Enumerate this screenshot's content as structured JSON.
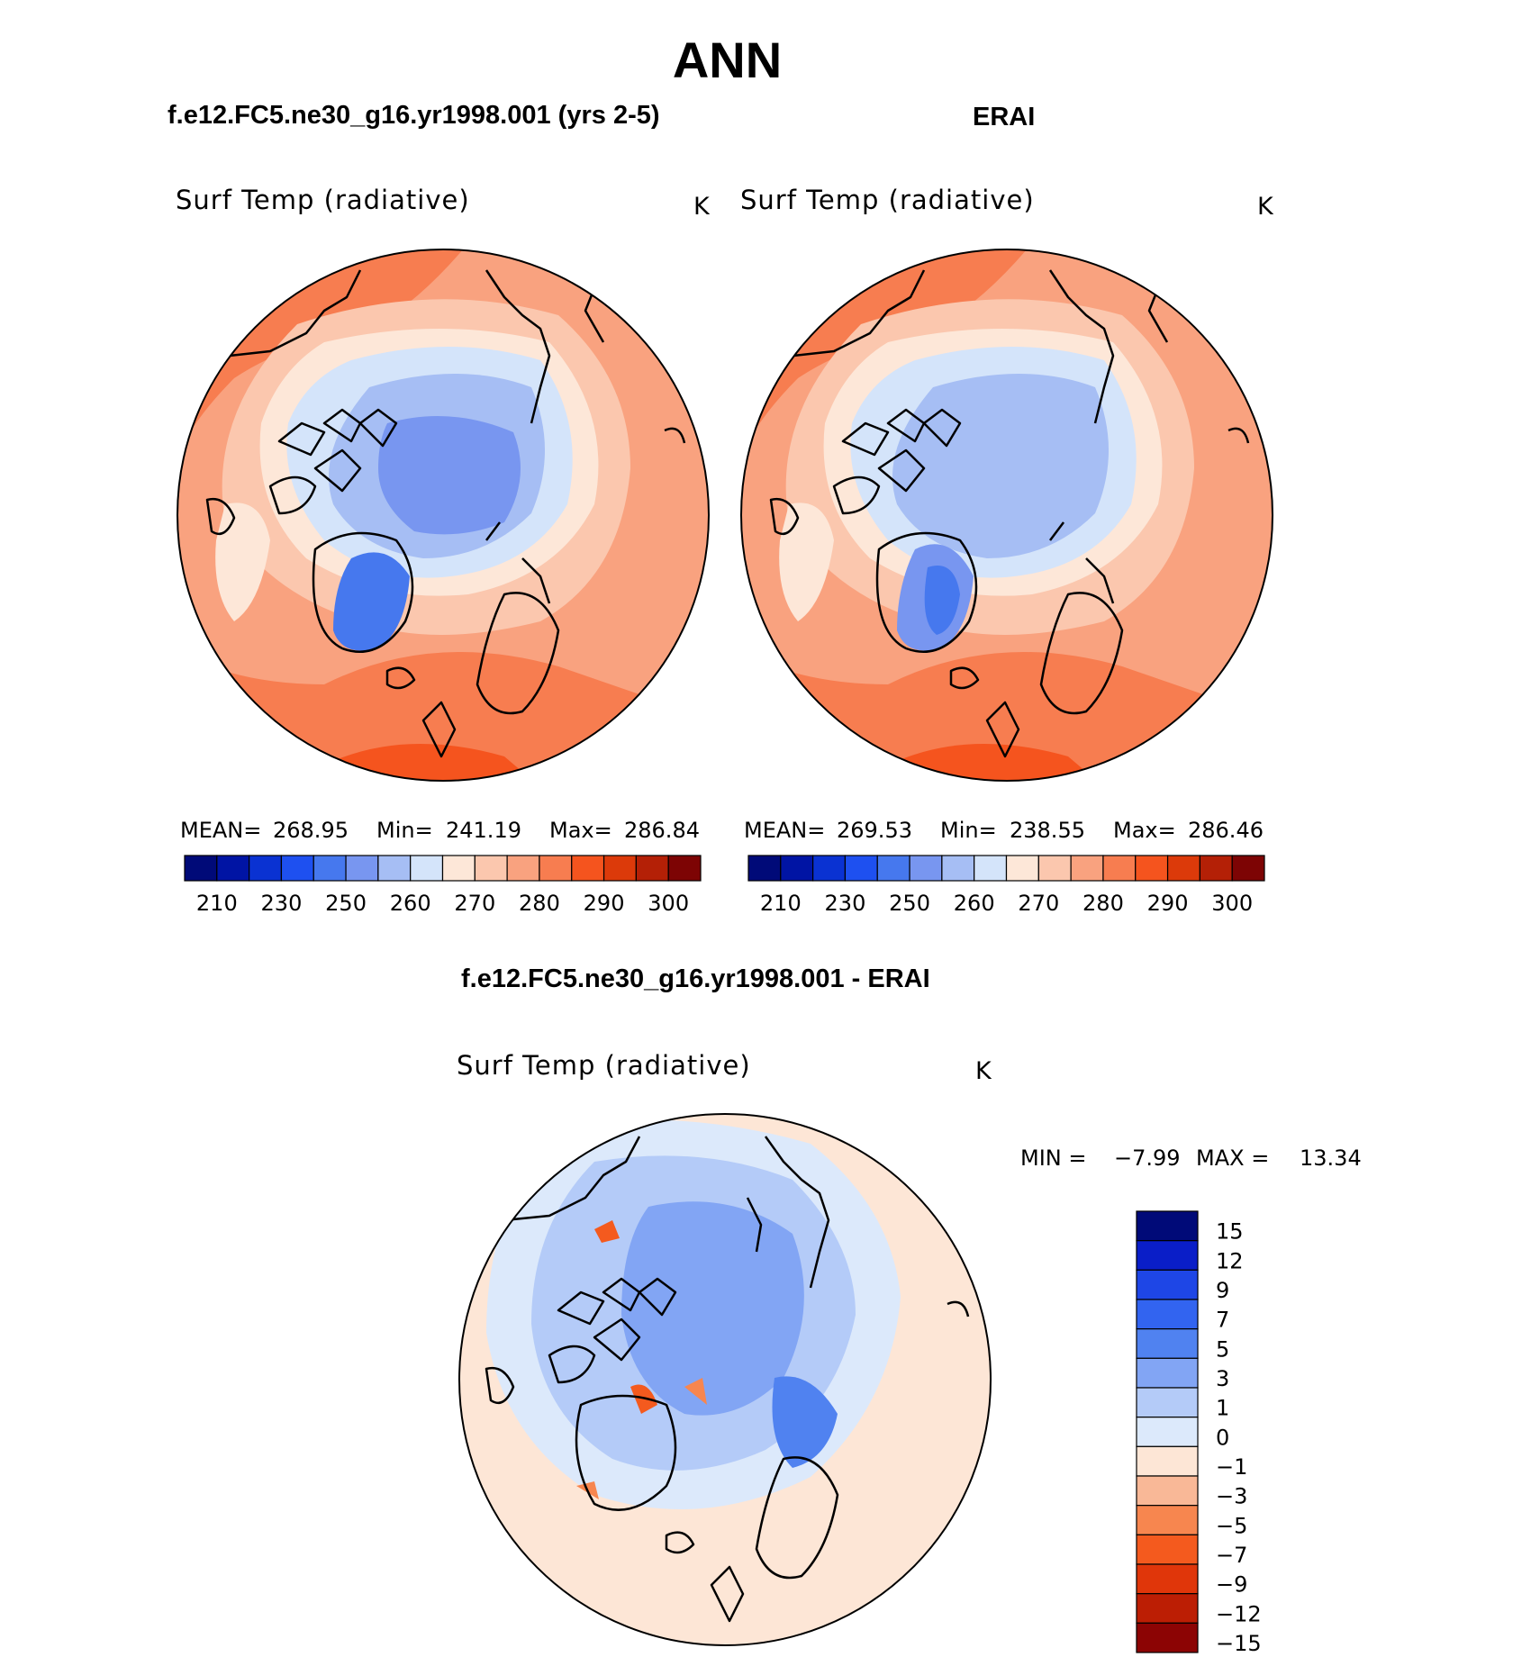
{
  "page_title": "ANN",
  "panels": [
    {
      "case": "f.e12.FC5.ne30_g16.yr1998.001 (yrs 2-5)",
      "variable": "Surf Temp (radiative)",
      "units": "K",
      "stats": {
        "mean_label": "MEAN=",
        "mean": "268.95",
        "min_label": "Min=",
        "min": "241.19",
        "max_label": "Max=",
        "max": "286.84"
      }
    },
    {
      "case": "ERAI",
      "variable": "Surf Temp (radiative)",
      "units": "K",
      "stats": {
        "mean_label": "MEAN=",
        "mean": "269.53",
        "min_label": "Min=",
        "min": "238.55",
        "max_label": "Max=",
        "max": "286.46"
      }
    }
  ],
  "abs_colorbar": {
    "colors": [
      "#000a78",
      "#0014a4",
      "#0a32d2",
      "#1e50f0",
      "#4678ee",
      "#7896f0",
      "#a6bef4",
      "#d4e4fa",
      "#fde7d8",
      "#fbc7ae",
      "#f9a27f",
      "#f77d50",
      "#f5541e",
      "#dc3a0a",
      "#b42006",
      "#7d0404"
    ],
    "tick_labels": [
      "210",
      "230",
      "250",
      "260",
      "270",
      "280",
      "290",
      "300"
    ]
  },
  "diff": {
    "title": "f.e12.FC5.ne30_g16.yr1998.001 - ERAI",
    "variable": "Surf Temp (radiative)",
    "units": "K",
    "min_label": "MIN =",
    "min": "−7.99",
    "max_label": "MAX =",
    "max": "13.34"
  },
  "diff_colorbar": {
    "colors": [
      "#000a78",
      "#0a1ec8",
      "#1e46e6",
      "#3264f0",
      "#5082f0",
      "#82a5f4",
      "#b4cbf8",
      "#dce9fb",
      "#fde6d6",
      "#f9b897",
      "#f7864f",
      "#f45a1e",
      "#e0360a",
      "#bc1e04",
      "#8c0404"
    ],
    "labels": [
      "15",
      "12",
      "9",
      "7",
      "5",
      "3",
      "1",
      "0",
      "−1",
      "−3",
      "−5",
      "−7",
      "−9",
      "−12",
      "−15"
    ]
  },
  "chart_data": [
    {
      "type": "heatmap",
      "title": "f.e12.FC5.ne30_g16.yr1998.001 (yrs 2-5)",
      "variable": "Surf Temp (radiative)",
      "units": "K",
      "projection": "north polar stereographic",
      "levels": [
        210,
        220,
        230,
        240,
        250,
        255,
        260,
        265,
        270,
        275,
        280,
        285,
        290,
        295,
        300
      ],
      "mean": 268.95,
      "min": 241.19,
      "max": 286.84
    },
    {
      "type": "heatmap",
      "title": "ERAI",
      "variable": "Surf Temp (radiative)",
      "units": "K",
      "projection": "north polar stereographic",
      "levels": [
        210,
        220,
        230,
        240,
        250,
        255,
        260,
        265,
        270,
        275,
        280,
        285,
        290,
        295,
        300
      ],
      "mean": 269.53,
      "min": 238.55,
      "max": 286.46
    },
    {
      "type": "heatmap",
      "title": "f.e12.FC5.ne30_g16.yr1998.001 - ERAI",
      "variable": "Surf Temp (radiative)",
      "units": "K",
      "projection": "north polar stereographic",
      "levels": [
        -15,
        -12,
        -9,
        -7,
        -5,
        -3,
        -1,
        0,
        1,
        3,
        5,
        7,
        9,
        12,
        15
      ],
      "min": -7.99,
      "max": 13.34
    }
  ]
}
